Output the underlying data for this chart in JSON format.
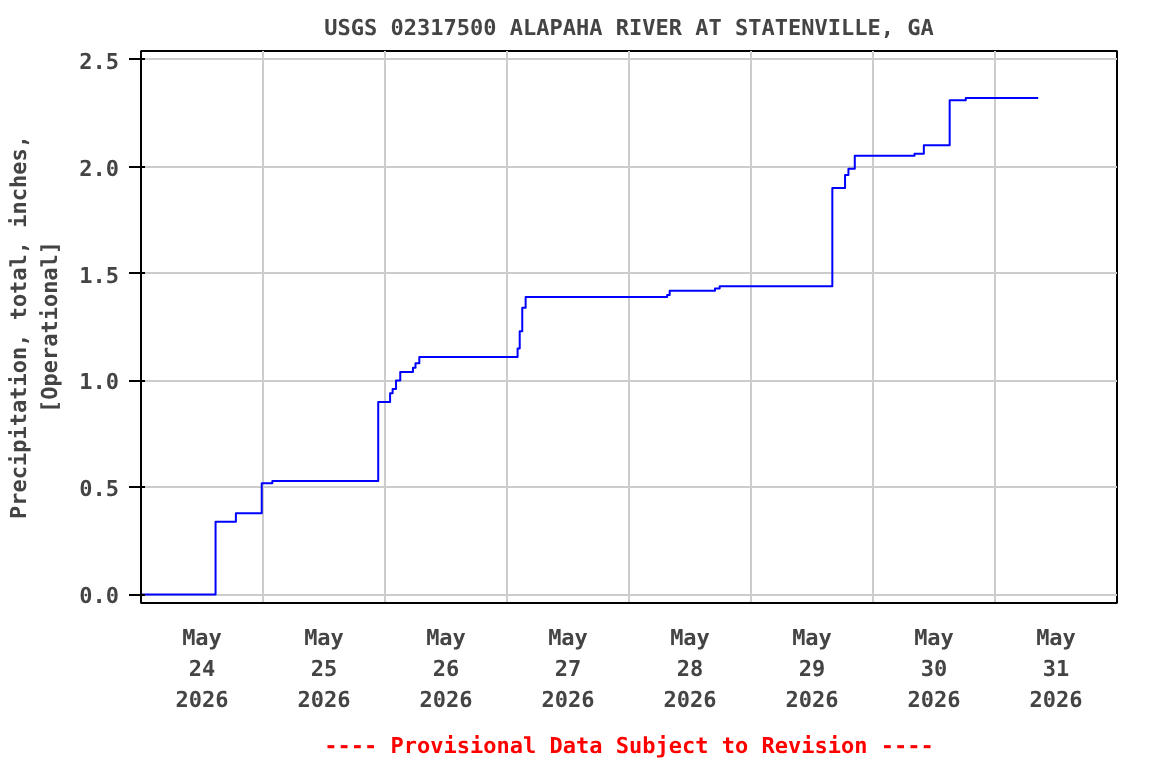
{
  "chart_data": {
    "type": "step",
    "title": "USGS 02317500 ALAPAHA RIVER AT STATENVILLE, GA",
    "ylabel": "Precipitation, total, inches,\n[Operational]",
    "annotations": [
      "---- Provisional Data Subject to Revision ----"
    ],
    "x": [
      "2026-05-24T00:00",
      "2026-05-24T14:40",
      "2026-05-24T18:40",
      "2026-05-24T23:45",
      "2026-05-25T01:50",
      "2026-05-25T22:40",
      "2026-05-26T01:00",
      "2026-05-26T01:30",
      "2026-05-26T02:10",
      "2026-05-26T03:00",
      "2026-05-26T05:30",
      "2026-05-26T06:00",
      "2026-05-26T06:45",
      "2026-05-27T02:05",
      "2026-05-27T02:30",
      "2026-05-27T03:00",
      "2026-05-27T03:40",
      "2026-05-28T07:30",
      "2026-05-28T08:00",
      "2026-05-28T16:55",
      "2026-05-28T17:50",
      "2026-05-29T16:00",
      "2026-05-29T18:30",
      "2026-05-29T19:10",
      "2026-05-29T20:25",
      "2026-05-30T08:10",
      "2026-05-30T10:00",
      "2026-05-30T15:05",
      "2026-05-30T18:15",
      "2026-05-31T08:30"
    ],
    "series": [
      {
        "color": "#0000ff",
        "values": [
          0,
          0.34,
          0.38,
          0.52,
          0.53,
          0.9,
          0.94,
          0.96,
          1.0,
          1.04,
          1.06,
          1.08,
          1.11,
          1.15,
          1.23,
          1.34,
          1.39,
          1.4,
          1.42,
          1.43,
          1.44,
          1.9,
          1.96,
          1.99,
          2.05,
          2.06,
          2.1,
          2.31,
          2.32,
          2.32
        ]
      }
    ],
    "xlim": [
      "2026-05-24T00:00",
      "2026-06-01T00:00"
    ],
    "xticks": [
      {
        "value": "2026-05-24T12:00",
        "label": "May\n24\n2026"
      },
      {
        "value": "2026-05-25T12:00",
        "label": "May\n25\n2026"
      },
      {
        "value": "2026-05-26T12:00",
        "label": "May\n26\n2026"
      },
      {
        "value": "2026-05-27T12:00",
        "label": "May\n27\n2026"
      },
      {
        "value": "2026-05-28T12:00",
        "label": "May\n28\n2026"
      },
      {
        "value": "2026-05-29T12:00",
        "label": "May\n29\n2026"
      },
      {
        "value": "2026-05-30T12:00",
        "label": "May\n30\n2026"
      },
      {
        "value": "2026-05-31T12:00",
        "label": "May\n31\n2026"
      },
      {
        "value": "2026-05-25T00:00",
        "label": null
      },
      {
        "value": "2026-05-26T00:00",
        "label": null
      },
      {
        "value": "2026-05-27T00:00",
        "label": null
      },
      {
        "value": "2026-05-28T00:00",
        "label": null
      },
      {
        "value": "2026-05-29T00:00",
        "label": null
      },
      {
        "value": "2026-05-30T00:00",
        "label": null
      },
      {
        "value": "2026-05-31T00:00",
        "label": null
      }
    ],
    "ylim": [
      -0.04,
      2.54
    ],
    "yticks": [
      {
        "value": 0,
        "label": "0.0"
      },
      {
        "value": 0.5,
        "label": "0.5"
      },
      {
        "value": 1.0,
        "label": "1.0"
      },
      {
        "value": 1.5,
        "label": "1.5"
      },
      {
        "value": 2.0,
        "label": "2.0"
      },
      {
        "value": 2.5,
        "label": "2.5"
      }
    ],
    "grid": true
  }
}
